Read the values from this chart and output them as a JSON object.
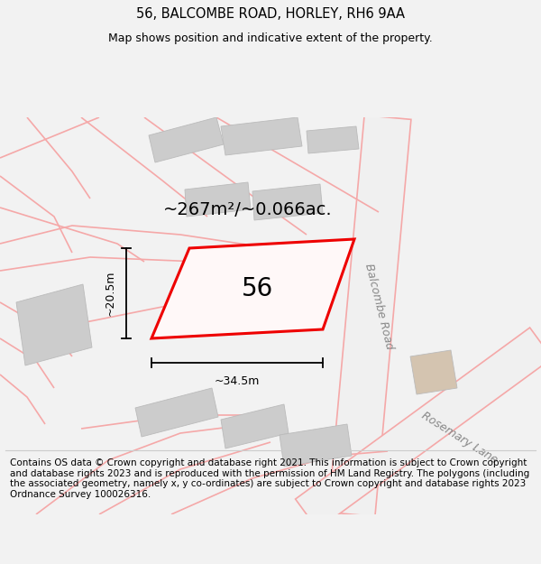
{
  "title": "56, BALCOMBE ROAD, HORLEY, RH6 9AA",
  "subtitle": "Map shows position and indicative extent of the property.",
  "footer": "Contains OS data © Crown copyright and database right 2021. This information is subject to Crown copyright and database rights 2023 and is reproduced with the permission of HM Land Registry. The polygons (including the associated geometry, namely x, y co-ordinates) are subject to Crown copyright and database rights 2023 Ordnance Survey 100026316.",
  "area_label": "~267m²/~0.066ac.",
  "width_label": "~34.5m",
  "height_label": "~20.5m",
  "number_label": "56",
  "bg_color": "#f2f2f2",
  "map_bg": "#ffffff",
  "road_color": "#f5a8a8",
  "building_color": "#cccccc",
  "highlight_color": "#ee0000",
  "balcombe_road_label": "Balcombe Road",
  "rosemary_lane_label": "Rosemary Lane",
  "title_fontsize": 10.5,
  "subtitle_fontsize": 9.0,
  "footer_fontsize": 7.5,
  "area_fontsize": 14,
  "number_fontsize": 20,
  "dim_fontsize": 9,
  "road_label_fontsize": 9
}
